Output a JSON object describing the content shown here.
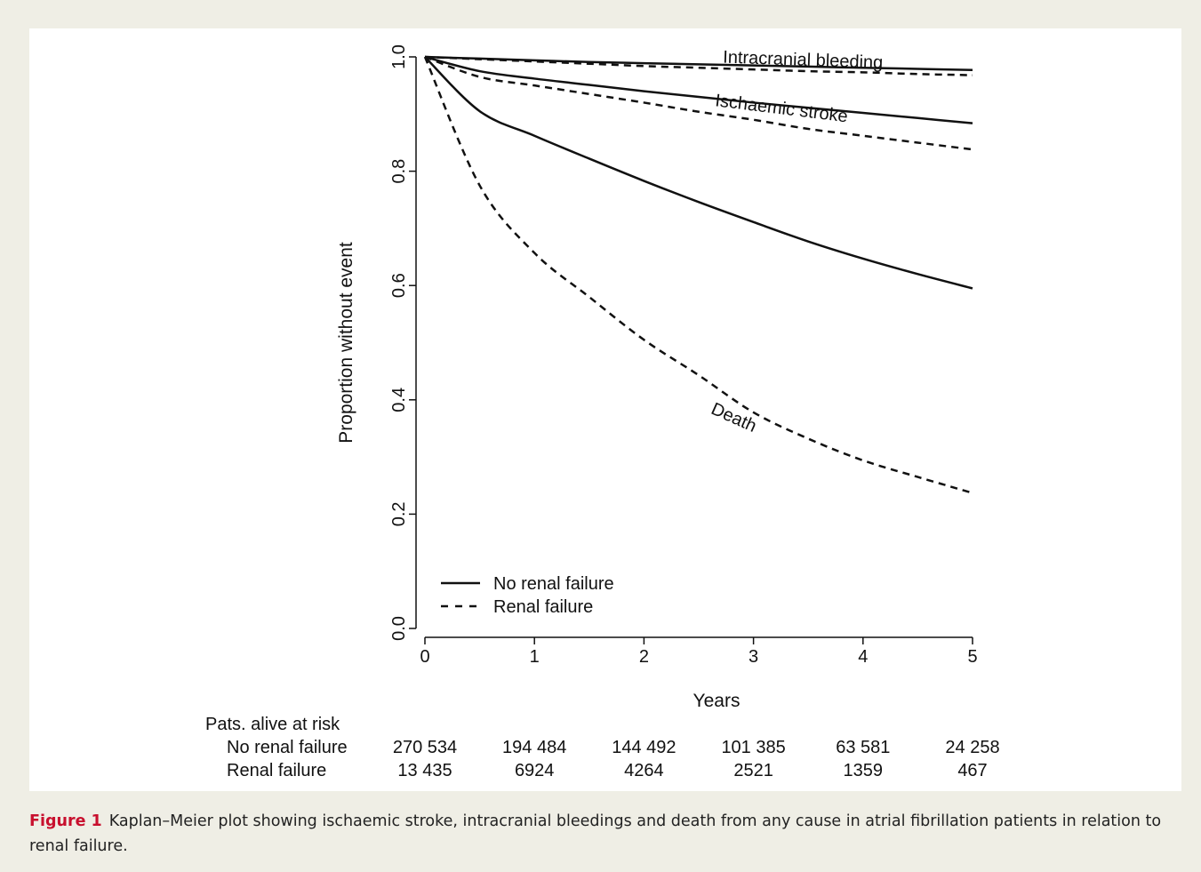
{
  "chart_data": {
    "type": "line",
    "title": "",
    "xlabel": "Years",
    "ylabel": "Proportion without event",
    "xlim": [
      0,
      5
    ],
    "ylim": [
      0,
      1
    ],
    "xticks": [
      "0",
      "1",
      "2",
      "3",
      "4",
      "5"
    ],
    "yticks": [
      "0.0",
      "0.2",
      "0.4",
      "0.6",
      "0.8",
      "1.0"
    ],
    "grid": false,
    "legend_position": "bottom-left",
    "legend": [
      {
        "label": "No renal failure",
        "style": "solid"
      },
      {
        "label": "Renal failure",
        "style": "dashed"
      }
    ],
    "x": [
      0,
      0.5,
      1,
      1.5,
      2,
      2.5,
      3,
      3.5,
      4,
      4.5,
      5
    ],
    "series": [
      {
        "group": "No renal failure",
        "outcome": "Intracranial bleeding",
        "style": "solid",
        "values": [
          1.0,
          0.997,
          0.994,
          0.991,
          0.989,
          0.987,
          0.985,
          0.983,
          0.981,
          0.979,
          0.977
        ]
      },
      {
        "group": "Renal failure",
        "outcome": "Intracranial bleeding",
        "style": "dashed",
        "values": [
          1.0,
          0.996,
          0.992,
          0.988,
          0.984,
          0.981,
          0.978,
          0.975,
          0.973,
          0.97,
          0.968
        ]
      },
      {
        "group": "No renal failure",
        "outcome": "Ischaemic stroke",
        "style": "solid",
        "values": [
          1.0,
          0.975,
          0.962,
          0.951,
          0.94,
          0.93,
          0.92,
          0.911,
          0.902,
          0.893,
          0.884
        ]
      },
      {
        "group": "Renal failure",
        "outcome": "Ischaemic stroke",
        "style": "dashed",
        "values": [
          1.0,
          0.965,
          0.95,
          0.935,
          0.92,
          0.904,
          0.89,
          0.874,
          0.862,
          0.85,
          0.838
        ]
      },
      {
        "group": "No renal failure",
        "outcome": "Death",
        "style": "solid",
        "values": [
          1.0,
          0.905,
          0.862,
          0.822,
          0.783,
          0.746,
          0.711,
          0.677,
          0.647,
          0.62,
          0.595
        ]
      },
      {
        "group": "Renal failure",
        "outcome": "Death",
        "style": "dashed",
        "values": [
          1.0,
          0.775,
          0.657,
          0.58,
          0.505,
          0.443,
          0.378,
          0.332,
          0.294,
          0.265,
          0.237
        ]
      }
    ],
    "annotations": [
      {
        "text": "Intracranial bleeding",
        "x": 3.45,
        "y": 0.985,
        "rotate": 2
      },
      {
        "text": "Ischaemic stroke",
        "x": 3.25,
        "y": 0.9,
        "rotate": 7
      },
      {
        "text": "Death",
        "x": 2.8,
        "y": 0.36,
        "rotate": 24
      }
    ],
    "risk_table": {
      "header": "Pats. alive at risk",
      "rows": [
        {
          "label": "No renal failure",
          "values": [
            "270 534",
            "194 484",
            "144 492",
            "101 385",
            "63 581",
            "24 258"
          ]
        },
        {
          "label": "Renal failure",
          "values": [
            "13 435",
            "6924",
            "4264",
            "2521",
            "1359",
            "467"
          ]
        }
      ]
    }
  },
  "caption": {
    "label": "Figure 1",
    "text": "Kaplan–Meier plot showing ischaemic stroke, intracranial bleedings and death from any cause in atrial fibrillation patients in relation to renal failure."
  }
}
